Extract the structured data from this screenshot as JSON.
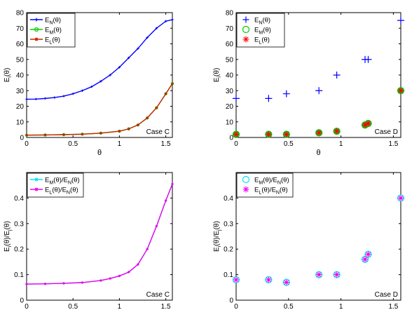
{
  "chart_data": [
    {
      "id": "case-c-energy",
      "type": "line",
      "case_label": "Case C",
      "xlabel": "θ",
      "ylabel": "E_i(θ)",
      "xlim": [
        0,
        1.5708
      ],
      "ylim": [
        0,
        80
      ],
      "xticks": [
        0,
        0.5,
        1,
        1.5
      ],
      "xtick_labels": [
        "0",
        "0.5",
        "1",
        "1.5"
      ],
      "yticks": [
        0,
        10,
        20,
        30,
        40,
        50,
        60,
        70,
        80
      ],
      "ytick_labels": [
        "0",
        "10",
        "20",
        "30",
        "40",
        "50",
        "60",
        "70",
        "80"
      ],
      "legend": "top-left",
      "series": [
        {
          "name": "E_N(θ)",
          "color": "#0000ff",
          "marker": "plus",
          "x": [
            0,
            0.1,
            0.2,
            0.3,
            0.4,
            0.5,
            0.6,
            0.7,
            0.8,
            0.9,
            1.0,
            1.1,
            1.2,
            1.3,
            1.4,
            1.5,
            1.5708
          ],
          "values": [
            24.5,
            24.6,
            25,
            25.6,
            26.5,
            28,
            30,
            32.5,
            36,
            40,
            45,
            51,
            57,
            64,
            70,
            74.5,
            75.5
          ]
        },
        {
          "name": "E_M(θ)",
          "color": "#00cc00",
          "marker": "circle",
          "x": [
            0,
            0.2,
            0.4,
            0.6,
            0.8,
            1.0,
            1.1,
            1.2,
            1.3,
            1.4,
            1.5,
            1.5708
          ],
          "values": [
            1.5,
            1.6,
            1.8,
            2.1,
            2.8,
            4,
            5.5,
            8,
            12.5,
            19,
            28,
            34.5
          ]
        },
        {
          "name": "E_L(θ)",
          "color": "#cc2200",
          "marker": "star",
          "x": [
            0,
            0.2,
            0.4,
            0.6,
            0.8,
            1.0,
            1.1,
            1.2,
            1.3,
            1.4,
            1.5,
            1.5708
          ],
          "values": [
            1.5,
            1.6,
            1.8,
            2.1,
            2.8,
            4,
            5.5,
            8,
            12.5,
            19,
            28,
            34.5
          ]
        }
      ]
    },
    {
      "id": "case-d-energy",
      "type": "scatter",
      "case_label": "Case D",
      "xlabel": "θ",
      "ylabel": "E_i(θ)",
      "xlim": [
        0,
        1.5708
      ],
      "ylim": [
        0,
        80
      ],
      "xticks": [
        0,
        0.5,
        1,
        1.5
      ],
      "xtick_labels": [
        "0",
        "0.5",
        "1",
        "1.5"
      ],
      "yticks": [
        0,
        10,
        20,
        30,
        40,
        50,
        60,
        70,
        80
      ],
      "ytick_labels": [
        "0",
        "10",
        "20",
        "30",
        "40",
        "50",
        "60",
        "70",
        "80"
      ],
      "legend": "top-left",
      "series": [
        {
          "name": "E_N(θ)",
          "color": "#0000ff",
          "marker": "plus",
          "x": [
            0,
            0.31,
            0.48,
            0.79,
            0.96,
            1.23,
            1.26,
            1.5708
          ],
          "values": [
            25,
            25,
            28,
            30,
            40,
            50,
            50,
            75
          ]
        },
        {
          "name": "E_M(θ)",
          "color": "#00cc00",
          "marker": "circle",
          "x": [
            0,
            0.31,
            0.48,
            0.79,
            0.96,
            1.23,
            1.26,
            1.5708
          ],
          "values": [
            2,
            2,
            2,
            3,
            4,
            8,
            9,
            30
          ]
        },
        {
          "name": "E_L(θ)",
          "color": "#ff0000",
          "marker": "star",
          "x": [
            0,
            0.31,
            0.48,
            0.79,
            0.96,
            1.23,
            1.26,
            1.5708
          ],
          "values": [
            2,
            2,
            2,
            3,
            4,
            8,
            9,
            30
          ]
        }
      ]
    },
    {
      "id": "case-c-ratio",
      "type": "line",
      "case_label": "Case C",
      "xlabel": "θ",
      "ylabel": "E_i(θ)/E_j(θ)",
      "xlim": [
        0,
        1.5708
      ],
      "ylim": [
        0,
        0.5
      ],
      "xticks": [
        0,
        0.5,
        1,
        1.5
      ],
      "xtick_labels": [
        "0",
        "0.5",
        "1",
        "1.5"
      ],
      "yticks": [
        0,
        0.1,
        0.2,
        0.3,
        0.4
      ],
      "ytick_labels": [
        "0",
        "0.1",
        "0.2",
        "0.3",
        "0.4"
      ],
      "legend": "top-left",
      "series": [
        {
          "name": "E_M(θ)/E_N(θ)",
          "color": "#00e5ee",
          "marker": "star",
          "x": [
            0,
            0.2,
            0.4,
            0.6,
            0.8,
            0.9,
            1.0,
            1.1,
            1.2,
            1.3,
            1.4,
            1.5,
            1.5708
          ],
          "values": [
            0.063,
            0.064,
            0.066,
            0.069,
            0.077,
            0.085,
            0.095,
            0.11,
            0.14,
            0.2,
            0.29,
            0.39,
            0.455
          ]
        },
        {
          "name": "E_L(θ)/E_N(θ)",
          "color": "#ee00ee",
          "marker": "star",
          "x": [
            0,
            0.2,
            0.4,
            0.6,
            0.8,
            0.9,
            1.0,
            1.1,
            1.2,
            1.3,
            1.4,
            1.5,
            1.5708
          ],
          "values": [
            0.063,
            0.064,
            0.066,
            0.069,
            0.077,
            0.085,
            0.095,
            0.11,
            0.14,
            0.2,
            0.29,
            0.39,
            0.455
          ]
        }
      ]
    },
    {
      "id": "case-d-ratio",
      "type": "scatter",
      "case_label": "Case D",
      "xlabel": "θ",
      "ylabel": "E_i(θ)/E_j(θ)",
      "xlim": [
        0,
        1.5708
      ],
      "ylim": [
        0,
        0.5
      ],
      "xticks": [
        0,
        0.5,
        1,
        1.5
      ],
      "xtick_labels": [
        "0",
        "0.5",
        "1",
        "1.5"
      ],
      "yticks": [
        0,
        0.1,
        0.2,
        0.3,
        0.4
      ],
      "ytick_labels": [
        "0",
        "0.1",
        "0.2",
        "0.3",
        "0.4"
      ],
      "legend": "top-left",
      "series": [
        {
          "name": "E_M(θ)/E_N(θ)",
          "color": "#00e5ee",
          "marker": "circle",
          "x": [
            0,
            0.31,
            0.48,
            0.79,
            0.96,
            1.23,
            1.26,
            1.5708
          ],
          "values": [
            0.08,
            0.08,
            0.07,
            0.1,
            0.1,
            0.16,
            0.18,
            0.4
          ]
        },
        {
          "name": "E_L(θ)/E_N(θ)",
          "color": "#ee00ee",
          "marker": "star",
          "x": [
            0,
            0.31,
            0.48,
            0.79,
            0.96,
            1.23,
            1.26,
            1.5708
          ],
          "values": [
            0.08,
            0.08,
            0.07,
            0.1,
            0.1,
            0.16,
            0.18,
            0.4
          ]
        }
      ]
    }
  ]
}
